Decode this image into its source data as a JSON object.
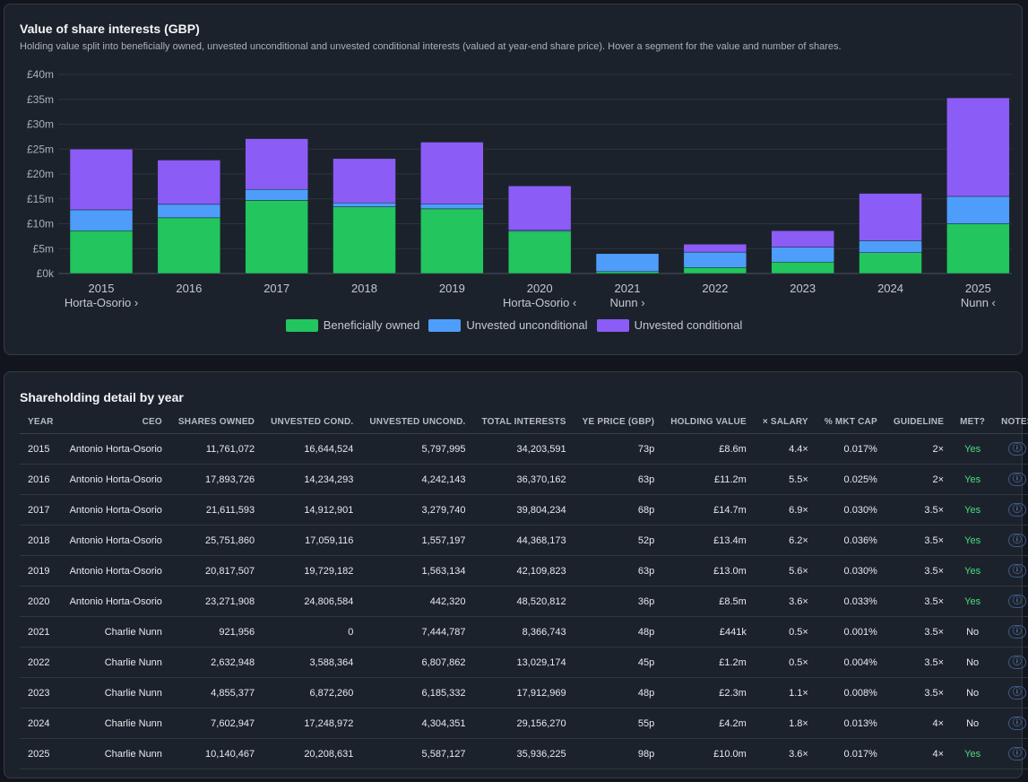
{
  "chart_card": {
    "title": "Value of share interests (GBP)",
    "subtitle": "Holding value split into beneficially owned, unvested unconditional and unvested conditional interests (valued at year-end share price). Hover a segment for the value and number of shares."
  },
  "chart_data": {
    "type": "bar",
    "stacked": true,
    "categories": [
      "2015",
      "2016",
      "2017",
      "2018",
      "2019",
      "2020",
      "2021",
      "2022",
      "2023",
      "2024",
      "2025"
    ],
    "category_sublabels": [
      "Horta-Osorio ›",
      "",
      "",
      "",
      "",
      "Horta-Osorio ‹",
      "Nunn ›",
      "",
      "",
      "",
      "Nunn ‹"
    ],
    "series": [
      {
        "name": "Beneficially owned",
        "color": "#22c55e",
        "values": [
          8.6,
          11.2,
          14.7,
          13.4,
          13.0,
          8.5,
          0.4,
          1.2,
          2.3,
          4.2,
          10.0
        ]
      },
      {
        "name": "Unvested unconditional",
        "color": "#4f9dfa",
        "values": [
          4.2,
          2.7,
          2.2,
          0.8,
          1.0,
          0.2,
          3.6,
          3.1,
          3.0,
          2.4,
          5.5
        ]
      },
      {
        "name": "Unvested conditional",
        "color": "#8b5cf6",
        "values": [
          12.2,
          8.9,
          10.2,
          8.9,
          12.4,
          8.9,
          0.0,
          1.6,
          3.3,
          9.5,
          19.8
        ]
      }
    ],
    "ylim": [
      0,
      40
    ],
    "y_ticks": [
      "£0k",
      "£5m",
      "£10m",
      "£15m",
      "£20m",
      "£25m",
      "£30m",
      "£35m",
      "£40m"
    ],
    "grid": true,
    "legend": "bottom-center"
  },
  "table": {
    "title": "Shareholding detail by year",
    "columns": [
      "YEAR",
      "CEO",
      "SHARES OWNED",
      "UNVESTED COND.",
      "UNVESTED UNCOND.",
      "TOTAL INTERESTS",
      "YE PRICE (GBP)",
      "HOLDING VALUE",
      "× SALARY",
      "% MKT CAP",
      "GUIDELINE",
      "MET?",
      "NOTES"
    ],
    "info_glyph": "ⓘ",
    "rows": [
      [
        "2015",
        "Antonio Horta-Osorio",
        "11,761,072",
        "16,644,524",
        "5,797,995",
        "34,203,591",
        "73p",
        "£8.6m",
        "4.4×",
        "0.017%",
        "2×",
        "Yes"
      ],
      [
        "2016",
        "Antonio Horta-Osorio",
        "17,893,726",
        "14,234,293",
        "4,242,143",
        "36,370,162",
        "63p",
        "£11.2m",
        "5.5×",
        "0.025%",
        "2×",
        "Yes"
      ],
      [
        "2017",
        "Antonio Horta-Osorio",
        "21,611,593",
        "14,912,901",
        "3,279,740",
        "39,804,234",
        "68p",
        "£14.7m",
        "6.9×",
        "0.030%",
        "3.5×",
        "Yes"
      ],
      [
        "2018",
        "Antonio Horta-Osorio",
        "25,751,860",
        "17,059,116",
        "1,557,197",
        "44,368,173",
        "52p",
        "£13.4m",
        "6.2×",
        "0.036%",
        "3.5×",
        "Yes"
      ],
      [
        "2019",
        "Antonio Horta-Osorio",
        "20,817,507",
        "19,729,182",
        "1,563,134",
        "42,109,823",
        "63p",
        "£13.0m",
        "5.6×",
        "0.030%",
        "3.5×",
        "Yes"
      ],
      [
        "2020",
        "Antonio Horta-Osorio",
        "23,271,908",
        "24,806,584",
        "442,320",
        "48,520,812",
        "36p",
        "£8.5m",
        "3.6×",
        "0.033%",
        "3.5×",
        "Yes"
      ],
      [
        "2021",
        "Charlie Nunn",
        "921,956",
        "0",
        "7,444,787",
        "8,366,743",
        "48p",
        "£441k",
        "0.5×",
        "0.001%",
        "3.5×",
        "No"
      ],
      [
        "2022",
        "Charlie Nunn",
        "2,632,948",
        "3,588,364",
        "6,807,862",
        "13,029,174",
        "45p",
        "£1.2m",
        "0.5×",
        "0.004%",
        "3.5×",
        "No"
      ],
      [
        "2023",
        "Charlie Nunn",
        "4,855,377",
        "6,872,260",
        "6,185,332",
        "17,912,969",
        "48p",
        "£2.3m",
        "1.1×",
        "0.008%",
        "3.5×",
        "No"
      ],
      [
        "2024",
        "Charlie Nunn",
        "7,602,947",
        "17,248,972",
        "4,304,351",
        "29,156,270",
        "55p",
        "£4.2m",
        "1.8×",
        "0.013%",
        "4×",
        "No"
      ],
      [
        "2025",
        "Charlie Nunn",
        "10,140,467",
        "20,208,631",
        "5,587,127",
        "35,936,225",
        "98p",
        "£10.0m",
        "3.6×",
        "0.017%",
        "4×",
        "Yes"
      ]
    ]
  }
}
